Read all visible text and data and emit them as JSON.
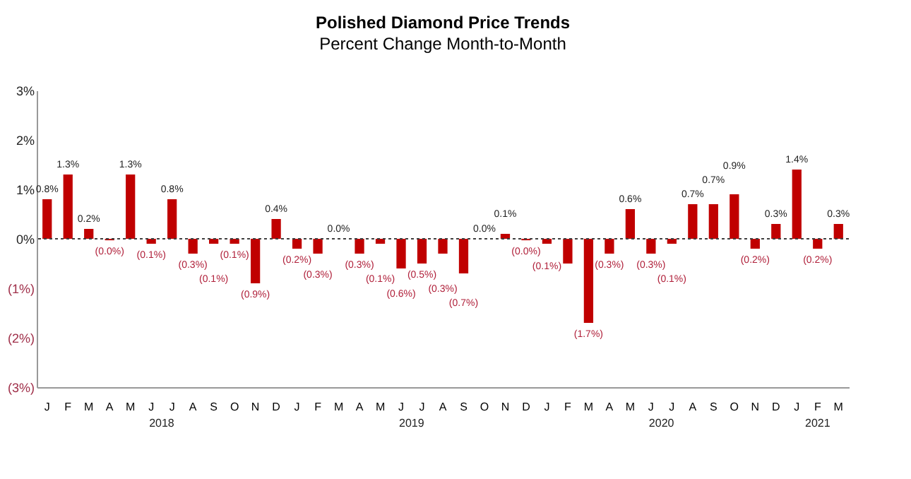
{
  "chart_data": {
    "type": "bar",
    "title": "Polished Diamond Price Trends",
    "subtitle": "Percent Change Month-to-Month",
    "categories": [
      "J",
      "F",
      "M",
      "A",
      "M",
      "J",
      "J",
      "A",
      "S",
      "O",
      "N",
      "D",
      "J",
      "F",
      "M",
      "A",
      "M",
      "J",
      "J",
      "A",
      "S",
      "O",
      "N",
      "D",
      "J",
      "F",
      "M",
      "A",
      "M",
      "J",
      "J",
      "A",
      "S",
      "O",
      "N",
      "D",
      "J",
      "F",
      "M"
    ],
    "series": [
      {
        "color": "#c00000",
        "values": [
          0.8,
          1.3,
          0.2,
          -0.03,
          1.3,
          -0.1,
          0.8,
          -0.3,
          -0.1,
          -0.1,
          -0.9,
          0.4,
          -0.2,
          -0.3,
          0.0,
          -0.3,
          -0.1,
          -0.6,
          -0.5,
          -0.3,
          -0.7,
          0.0,
          0.1,
          -0.03,
          -0.1,
          -0.5,
          -1.7,
          -0.3,
          0.6,
          -0.3,
          -0.1,
          0.7,
          0.7,
          0.9,
          -0.2,
          0.3,
          1.4,
          -0.2,
          0.3
        ],
        "value_labels": [
          "0.8%",
          "1.3%",
          "0.2%",
          "(0.0%)",
          "1.3%",
          "(0.1%)",
          "0.8%",
          "(0.3%)",
          "(0.1%)",
          "(0.1%)",
          "(0.9%)",
          "0.4%",
          "(0.2%)",
          "(0.3%)",
          "0.0%",
          "(0.3%)",
          "(0.1%)",
          "(0.6%)",
          "(0.5%)",
          "(0.3%)",
          "(0.7%)",
          "0.0%",
          "0.1%",
          "(0.0%)",
          "(0.1%)",
          null,
          "(1.7%)",
          "(0.3%)",
          "0.6%",
          "(0.3%)",
          "(0.1%)",
          "0.7%",
          "0.7%",
          "0.9%",
          "(0.2%)",
          "0.3%",
          "1.4%",
          "(0.2%)",
          "0.3%"
        ]
      }
    ],
    "ylim": [
      -3,
      3
    ],
    "yticks": [
      {
        "value": -3,
        "label": "(3%)"
      },
      {
        "value": -2,
        "label": "(2%)"
      },
      {
        "value": -1,
        "label": "(1%)"
      },
      {
        "value": 0,
        "label": "0%"
      },
      {
        "value": 1,
        "label": "1%"
      },
      {
        "value": 2,
        "label": "2%"
      },
      {
        "value": 3,
        "label": "3%"
      }
    ],
    "ref_lines": [
      {
        "axis": "y",
        "value": 0,
        "line_style": "dotted",
        "color": "#404040"
      }
    ],
    "annotations": [
      "2018",
      "2019",
      "2020",
      "2021"
    ],
    "grid": false
  }
}
